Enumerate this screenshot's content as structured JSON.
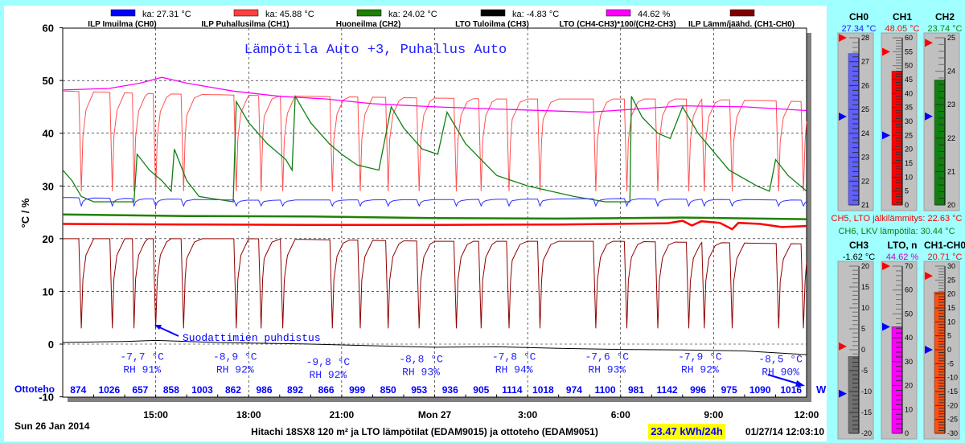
{
  "chart_data": {
    "type": "line",
    "title": "Lämpötila Auto +3, Puhallus Auto",
    "ylabel": "°C / %",
    "ylim": [
      -10,
      60
    ],
    "yticks": [
      "60",
      "50",
      "40",
      "30",
      "20",
      "10",
      "0",
      "-10"
    ],
    "ytick_values": [
      60,
      50,
      40,
      30,
      20,
      10,
      0,
      -10
    ],
    "xlim_hours": [
      0,
      24
    ],
    "xticks": [
      {
        "h": 3,
        "label": "15:00"
      },
      {
        "h": 6,
        "label": "18:00"
      },
      {
        "h": 9,
        "label": "21:00"
      },
      {
        "h": 12,
        "label": "Mon 27"
      },
      {
        "h": 15,
        "label": "3:00"
      },
      {
        "h": 18,
        "label": "6:00"
      },
      {
        "h": 21,
        "label": "9:00"
      },
      {
        "h": 24,
        "label": "12:00"
      }
    ],
    "grid": true,
    "legend": [
      {
        "avg": "ka: 27.31 °C",
        "name": "ILP Imuilma (CH0)",
        "color": "#0000ff"
      },
      {
        "avg": "ka: 45.88 °C",
        "name": "ILP Puhallusilma (CH1)",
        "color": "#ff4040"
      },
      {
        "avg": "ka: 24.02 °C",
        "name": "Huoneilma (CH2)",
        "color": "#208000"
      },
      {
        "avg": "ka: -4.83 °C",
        "name": "LTO Tuloilma (CH3)",
        "color": "#000000"
      },
      {
        "avg": "44.62 %",
        "name": "LTO (CH4-CH3)*100/(CH2-CH3)",
        "color": "#ff00ff"
      },
      {
        "avg": "",
        "name": "ILP Lämm/jäähd. (CH1-CH0)",
        "color": "#800000"
      }
    ],
    "dip_times_hours": [
      0.6,
      1.6,
      2.3,
      3.0,
      3.9,
      5.6,
      6.4,
      7.1,
      8.7,
      9.6,
      10.5,
      11.5,
      12.7,
      13.5,
      14.4,
      15.4,
      17.2,
      18.2,
      19.2,
      20.2,
      20.7,
      21.6,
      23.1,
      23.9
    ],
    "series": [
      {
        "name": "ILP Puhallusilma (CH1)",
        "color": "#ff5050",
        "width": 1,
        "baseline": [
          [
            0,
            48
          ],
          [
            3,
            47.5
          ],
          [
            8,
            47
          ],
          [
            14,
            46.5
          ],
          [
            20,
            46.5
          ],
          [
            24,
            46
          ]
        ],
        "dip_min": 29
      },
      {
        "name": "LTO (CH4-CH3)*100/(CH2-CH3)",
        "color": "#ff00ff",
        "width": 1.3,
        "points": [
          [
            0,
            48.2
          ],
          [
            1.5,
            48.5
          ],
          [
            2.5,
            49.5
          ],
          [
            3.2,
            50.6
          ],
          [
            4,
            49.5
          ],
          [
            5.5,
            48
          ],
          [
            7,
            47
          ],
          [
            8.5,
            46.5
          ],
          [
            10,
            45.6
          ],
          [
            12,
            45
          ],
          [
            14,
            44.6
          ],
          [
            16,
            44.2
          ],
          [
            17,
            44
          ],
          [
            18.5,
            44.6
          ],
          [
            20,
            45.2
          ],
          [
            22,
            45
          ],
          [
            24,
            44.3
          ]
        ]
      },
      {
        "name": "CH6, LKV lämpötila",
        "color": "#108010",
        "width": 1.3,
        "points": [
          [
            0,
            33
          ],
          [
            0.3,
            31
          ],
          [
            0.6,
            28
          ],
          [
            1.0,
            27
          ],
          [
            2.3,
            27
          ],
          [
            2.4,
            36
          ],
          [
            2.8,
            33
          ],
          [
            3.2,
            31
          ],
          [
            3.5,
            29
          ],
          [
            3.6,
            37
          ],
          [
            4.0,
            31
          ],
          [
            4.4,
            28
          ],
          [
            5.5,
            27
          ],
          [
            5.6,
            46
          ],
          [
            6.0,
            42
          ],
          [
            6.6,
            38
          ],
          [
            7.2,
            35
          ],
          [
            7.4,
            33
          ],
          [
            7.5,
            47
          ],
          [
            8.0,
            42
          ],
          [
            8.6,
            38
          ],
          [
            9.0,
            36
          ],
          [
            9.5,
            34
          ],
          [
            10.2,
            33
          ],
          [
            10.6,
            45
          ],
          [
            11.0,
            41
          ],
          [
            11.6,
            37
          ],
          [
            12.1,
            36
          ],
          [
            12.4,
            44
          ],
          [
            13.0,
            38
          ],
          [
            14.0,
            32
          ],
          [
            15.0,
            30
          ],
          [
            16.5,
            28
          ],
          [
            17.5,
            27
          ],
          [
            18.3,
            27
          ],
          [
            18.35,
            47
          ],
          [
            18.7,
            43
          ],
          [
            19.2,
            40
          ],
          [
            19.6,
            39
          ],
          [
            20.0,
            45
          ],
          [
            20.5,
            40
          ],
          [
            21.5,
            33
          ],
          [
            22.4,
            30
          ],
          [
            22.8,
            29
          ],
          [
            23.0,
            35
          ],
          [
            23.4,
            32
          ],
          [
            24,
            29
          ]
        ]
      },
      {
        "name": "ILP Imuilma (CH0)",
        "color": "#3030ff",
        "width": 1,
        "baseline": [
          [
            0,
            27.8
          ],
          [
            6,
            27.3
          ],
          [
            12,
            27.4
          ],
          [
            18,
            27.6
          ],
          [
            24,
            27.3
          ]
        ],
        "dip_min": 26.2
      },
      {
        "name": "Huoneilma (CH2)",
        "color": "#208000",
        "width": 2.5,
        "points": [
          [
            0,
            24.6
          ],
          [
            4,
            24.3
          ],
          [
            8,
            24.2
          ],
          [
            12,
            23.9
          ],
          [
            16,
            23.8
          ],
          [
            20,
            24.0
          ],
          [
            24,
            23.7
          ]
        ]
      },
      {
        "name": "CH5, LTO jälkilämmitys",
        "color": "#ff0000",
        "width": 2.5,
        "points": [
          [
            0,
            22.8
          ],
          [
            4,
            22.7
          ],
          [
            8,
            22.6
          ],
          [
            12,
            22.6
          ],
          [
            16,
            22.7
          ],
          [
            19.5,
            22.9
          ],
          [
            20,
            23.4
          ],
          [
            20.3,
            22.5
          ],
          [
            20.6,
            23.3
          ],
          [
            21.2,
            23.0
          ],
          [
            21.6,
            21.8
          ],
          [
            21.8,
            23.0
          ],
          [
            22.5,
            22.8
          ],
          [
            23.2,
            22.2
          ],
          [
            24,
            22.4
          ]
        ]
      },
      {
        "name": "ILP Lämm/jäähd. (CH1-CH0)",
        "color": "#900000",
        "width": 1,
        "baseline": [
          [
            0,
            20
          ],
          [
            6,
            20
          ],
          [
            12,
            19.5
          ],
          [
            18,
            19.5
          ],
          [
            24,
            19
          ]
        ],
        "dip_min": 3
      },
      {
        "name": "LTO Tuloilma (CH3)",
        "color": "#000000",
        "width": 1,
        "points": [
          [
            0,
            0.3
          ],
          [
            2,
            0.5
          ],
          [
            3,
            0.7
          ],
          [
            5,
            0.3
          ],
          [
            8,
            0
          ],
          [
            10,
            -0.3
          ],
          [
            12,
            -0.6
          ],
          [
            14,
            -0.5
          ],
          [
            16,
            -0.8
          ],
          [
            18,
            -1.0
          ],
          [
            20,
            -1.1
          ],
          [
            22,
            -1.3
          ],
          [
            24,
            -2.0
          ]
        ]
      }
    ],
    "annotations": [
      {
        "h": 1.2,
        "v": 1.2,
        "text": "Suodattimien puhdistus"
      }
    ],
    "outdoor": [
      {
        "h": 2.3,
        "temp": "-7,7 °C",
        "rh": "RH 91%",
        "v": -2.5
      },
      {
        "h": 5.3,
        "temp": "-8,9 °C",
        "rh": "RH 92%",
        "v": -2.5
      },
      {
        "h": 8.3,
        "temp": "-9,8 °C",
        "rh": "RH 92%",
        "v": -3.5
      },
      {
        "h": 11.3,
        "temp": "-8,8 °C",
        "rh": "RH 93%",
        "v": -3.0
      },
      {
        "h": 14.3,
        "temp": "-7,8 °C",
        "rh": "RH 94%",
        "v": -2.5
      },
      {
        "h": 17.3,
        "temp": "-7,6 °C",
        "rh": "RH 93%",
        "v": -2.5
      },
      {
        "h": 20.3,
        "temp": "-7,9 °C",
        "rh": "RH 92%",
        "v": -2.5
      },
      {
        "h": 22.9,
        "temp": "-8,5 °C",
        "rh": "RH 90%",
        "v": -3.0
      }
    ],
    "ottoteho_label": "Ottoteho",
    "ottoteho_unit": "W",
    "ottoteho": [
      "874",
      "1026",
      "657",
      "858",
      "1003",
      "862",
      "986",
      "892",
      "866",
      "999",
      "850",
      "953",
      "936",
      "905",
      "1114",
      "1018",
      "974",
      "1100",
      "981",
      "1142",
      "996",
      "975",
      "1090",
      "1016"
    ],
    "date_label": "Sun 26 Jan 2014",
    "footer_title": "Hitachi 18SX8 120 m² ja LTO lämpötilat (EDAM9015) ja ottoteho (EDAM9051)",
    "energy": "23.47 kWh/24h",
    "timestamp": "01/27/14 12:03:10"
  },
  "gauges": {
    "top": [
      {
        "label": "CH0",
        "value_text": "27.34 °C",
        "value": 27.34,
        "min": 21,
        "max": 28,
        "step": 1,
        "color": "#6060ff",
        "text_color": "#2020ff",
        "red": 28,
        "blue": 24.7
      },
      {
        "label": "CH1",
        "value_text": "48.05 °C",
        "value": 48.05,
        "min": 0,
        "max": 60,
        "step": 5,
        "color": "#ff0000",
        "text_color": "#ff0000",
        "red": 55,
        "blue": 25
      },
      {
        "label": "CH2",
        "value_text": "23.74 °C",
        "value": 23.74,
        "min": 20,
        "max": 25,
        "step": 1,
        "color": "#108010",
        "text_color": "#108010",
        "red": 24.85,
        "blue": 22.65
      }
    ],
    "ch5": "CH5, LTO jälkilämmitys: 22.63 °C",
    "ch6": "CH6, LKV lämpötila: 30.44 °C",
    "bottom": [
      {
        "label": "CH3",
        "value_text": "-1.62 °C",
        "value": -1.62,
        "min": -20,
        "max": 20,
        "step": 5,
        "color": "#707070",
        "text_color": "#000000",
        "red": 0.8,
        "blue": -10.5
      },
      {
        "label": "LTO, n",
        "value_text": "44.62 %",
        "value": 44.62,
        "min": 0,
        "max": 70,
        "step": 10,
        "color": "#ff00ff",
        "text_color": "#c000c0",
        "red": 70,
        "blue": 44.6
      },
      {
        "label": "CH1-CH0",
        "value_text": "20.71 °C",
        "value": 20.71,
        "min": -30,
        "max": 30,
        "step": 5,
        "color": "#ff5010",
        "text_color": "#ff0000",
        "red": 26.5,
        "blue": 0
      }
    ]
  }
}
